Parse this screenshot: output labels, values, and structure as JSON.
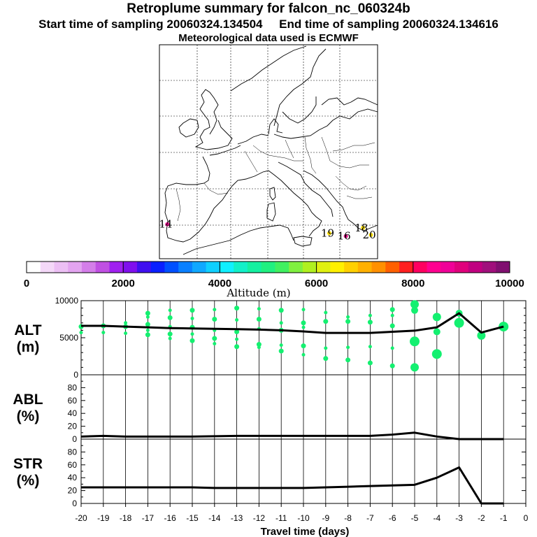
{
  "header": {
    "title": "Retroplume summary for falcon_nc_060324b",
    "start": "Start time of sampling 20060324.134504",
    "end": "End time of sampling 20060324.134616",
    "met": "Meteorological data used is ECMWF"
  },
  "colorbar": {
    "label": "Altitude (m)",
    "ticks": [
      "0",
      "2000",
      "4000",
      "6000",
      "8000",
      "10000"
    ],
    "colors": [
      "#ffffff",
      "#f4d8f8",
      "#ecbff4",
      "#e3a4f0",
      "#d47ee9",
      "#c050e3",
      "#a020f0",
      "#8010ee",
      "#4010f0",
      "#0a20ff",
      "#0050ff",
      "#0a80ff",
      "#10a8ff",
      "#10d0ff",
      "#10f0ff",
      "#12f0c8",
      "#14f0a0",
      "#20f080",
      "#40f060",
      "#80f040",
      "#b0f020",
      "#e0f010",
      "#fff000",
      "#ffd000",
      "#ffb000",
      "#ff9000",
      "#ff6000",
      "#ff2020",
      "#ff0060",
      "#ff0090",
      "#f00098",
      "#e0007c",
      "#c00080",
      "#a0107c",
      "#801070"
    ]
  },
  "map": {
    "labels": [
      {
        "text": "14",
        "lon": -8.8,
        "lat": 41.8,
        "color": "#e8108c"
      },
      {
        "text": "19",
        "lon": 15.7,
        "lat": 40.3,
        "color": "#ffe000"
      },
      {
        "text": "18",
        "lon": 20.8,
        "lat": 41.2,
        "color": "#ffe000"
      },
      {
        "text": "16",
        "lon": 18.2,
        "lat": 39.8,
        "color": "#e8108c"
      },
      {
        "text": "20",
        "lon": 22.0,
        "lat": 40.0,
        "color": "#ffe000"
      }
    ]
  },
  "chart_data": [
    {
      "type": "line",
      "panel": "altitude",
      "ylabel": "ALT\n(m)",
      "ylabel_lines": [
        "ALT",
        "(m)"
      ],
      "ylim": [
        0,
        10000
      ],
      "yticks": [
        "10000",
        "5000",
        "0"
      ],
      "x": [
        -20,
        -19,
        -18,
        -17,
        -16,
        -15,
        -14,
        -13,
        -12,
        -11,
        -10,
        -9,
        -8,
        -7,
        -6,
        -5,
        -4,
        -3,
        -2,
        -1
      ],
      "median": [
        6600,
        6600,
        6500,
        6400,
        6300,
        6250,
        6200,
        6150,
        6100,
        6000,
        5850,
        5650,
        5650,
        5650,
        5800,
        5950,
        6400,
        8300,
        5700,
        6500
      ],
      "spread_points": [
        [
          -20,
          5700
        ],
        [
          -20,
          6500
        ],
        [
          -19,
          5700
        ],
        [
          -19,
          6600
        ],
        [
          -18,
          5600
        ],
        [
          -18,
          6500
        ],
        [
          -18,
          7000
        ],
        [
          -17,
          5400
        ],
        [
          -17,
          6000
        ],
        [
          -17,
          6800
        ],
        [
          -17,
          7800
        ],
        [
          -17,
          8300
        ],
        [
          -16,
          4900
        ],
        [
          -16,
          5500
        ],
        [
          -16,
          6500
        ],
        [
          -16,
          7700
        ],
        [
          -16,
          8700
        ],
        [
          -15,
          4600
        ],
        [
          -15,
          5500
        ],
        [
          -15,
          6400
        ],
        [
          -15,
          7600
        ],
        [
          -15,
          8700
        ],
        [
          -14,
          4200
        ],
        [
          -14,
          4900
        ],
        [
          -14,
          6000
        ],
        [
          -14,
          7500
        ],
        [
          -14,
          8800
        ],
        [
          -13,
          3800
        ],
        [
          -13,
          4800
        ],
        [
          -13,
          5800
        ],
        [
          -13,
          7400
        ],
        [
          -13,
          9000
        ],
        [
          -12,
          3700
        ],
        [
          -12,
          4100
        ],
        [
          -12,
          6200
        ],
        [
          -12,
          7500
        ],
        [
          -12,
          8900
        ],
        [
          -11,
          3200
        ],
        [
          -11,
          4000
        ],
        [
          -11,
          6000
        ],
        [
          -11,
          7000
        ],
        [
          -11,
          8700
        ],
        [
          -10,
          2700
        ],
        [
          -10,
          3900
        ],
        [
          -10,
          6400
        ],
        [
          -10,
          7000
        ],
        [
          -10,
          8800
        ],
        [
          -9,
          2200
        ],
        [
          -9,
          3600
        ],
        [
          -9,
          7200
        ],
        [
          -9,
          8400
        ],
        [
          -8,
          2000
        ],
        [
          -8,
          3700
        ],
        [
          -8,
          7200
        ],
        [
          -8,
          7800
        ],
        [
          -7,
          1600
        ],
        [
          -7,
          3800
        ],
        [
          -7,
          7100
        ],
        [
          -7,
          8000
        ],
        [
          -6,
          1200
        ],
        [
          -6,
          3600
        ],
        [
          -6,
          6600
        ],
        [
          -6,
          8000
        ],
        [
          -6,
          8800
        ],
        [
          -5,
          1000
        ],
        [
          -5,
          4500
        ],
        [
          -5,
          8700
        ],
        [
          -5,
          9500
        ],
        [
          -4,
          2800
        ],
        [
          -4,
          5800
        ],
        [
          -4,
          7800
        ],
        [
          -3,
          7000
        ],
        [
          -3,
          8300
        ],
        [
          -2,
          5300
        ],
        [
          -1,
          6500
        ]
      ]
    },
    {
      "type": "line",
      "panel": "abl",
      "ylabel": "ABL\n(%)",
      "ylabel_lines": [
        "ABL",
        "(%)"
      ],
      "ylim": [
        0,
        100
      ],
      "yticks": [
        "80",
        "60",
        "40",
        "20",
        "0"
      ],
      "x": [
        -20,
        -19,
        -18,
        -17,
        -16,
        -15,
        -14,
        -13,
        -12,
        -11,
        -10,
        -9,
        -8,
        -7,
        -6,
        -5,
        -4,
        -3,
        -2,
        -1
      ],
      "values": [
        4,
        5,
        4,
        4,
        4,
        4,
        4.5,
        5,
        5,
        5,
        5,
        5,
        5,
        5,
        7,
        10,
        4,
        0,
        0,
        0
      ]
    },
    {
      "type": "line",
      "panel": "stratosphere",
      "ylabel": "STR\n(%)",
      "ylabel_lines": [
        "STR",
        "(%)"
      ],
      "ylim": [
        0,
        100
      ],
      "yticks": [
        "80",
        "60",
        "40",
        "20",
        "0"
      ],
      "x": [
        -20,
        -19,
        -18,
        -17,
        -16,
        -15,
        -14,
        -13,
        -12,
        -11,
        -10,
        -9,
        -8,
        -7,
        -6,
        -5,
        -4,
        -3,
        -2,
        -1
      ],
      "values": [
        25,
        25,
        25,
        25,
        25,
        25,
        24,
        24,
        24,
        24,
        24,
        25,
        26,
        27,
        28,
        29,
        40,
        56,
        0,
        0
      ]
    }
  ],
  "xaxis": {
    "label": "Travel time (days)",
    "ticks": [
      "-20",
      "-19",
      "-18",
      "-17",
      "-16",
      "-15",
      "-14",
      "-13",
      "-12",
      "-11",
      "-10",
      "-9",
      "-8",
      "-7",
      "-6",
      "-5",
      "-4",
      "-3",
      "-2",
      "-1",
      "0"
    ]
  }
}
